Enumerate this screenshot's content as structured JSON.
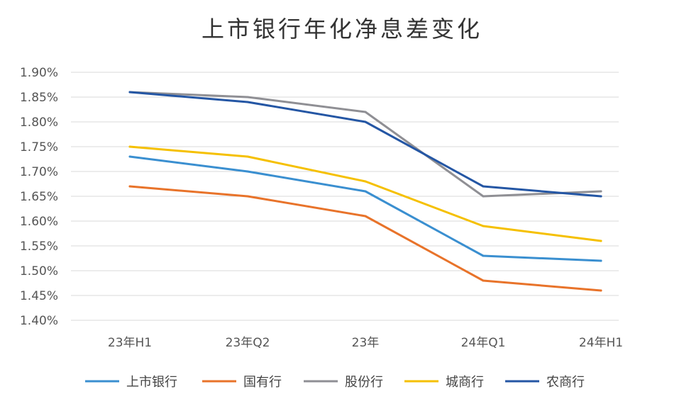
{
  "chart_data": {
    "type": "line",
    "title": "上市银行年化净息差变化",
    "xlabel": "",
    "ylabel": "",
    "categories": [
      "23年H1",
      "23年Q2",
      "23年",
      "24年Q1",
      "24年H1"
    ],
    "y_tick_labels": [
      "1.90%",
      "1.85%",
      "1.80%",
      "1.75%",
      "1.70%",
      "1.65%",
      "1.60%",
      "1.55%",
      "1.50%",
      "1.45%",
      "1.40%"
    ],
    "y_ticks": [
      1.9,
      1.85,
      1.8,
      1.75,
      1.7,
      1.65,
      1.6,
      1.55,
      1.5,
      1.45,
      1.4
    ],
    "ylim": [
      1.4,
      1.9
    ],
    "grid": true,
    "legend_position": "bottom",
    "series": [
      {
        "name": "上市银行",
        "color": "#3a8fd0",
        "values": [
          1.73,
          1.7,
          1.66,
          1.53,
          1.52
        ]
      },
      {
        "name": "国有行",
        "color": "#e8732a",
        "values": [
          1.67,
          1.65,
          1.61,
          1.48,
          1.46
        ]
      },
      {
        "name": "股份行",
        "color": "#8f8f94",
        "values": [
          1.86,
          1.85,
          1.82,
          1.65,
          1.66
        ]
      },
      {
        "name": "城商行",
        "color": "#f5c000",
        "values": [
          1.75,
          1.73,
          1.68,
          1.59,
          1.56
        ]
      },
      {
        "name": "农商行",
        "color": "#2456a4",
        "values": [
          1.86,
          1.84,
          1.8,
          1.67,
          1.65
        ]
      }
    ]
  }
}
